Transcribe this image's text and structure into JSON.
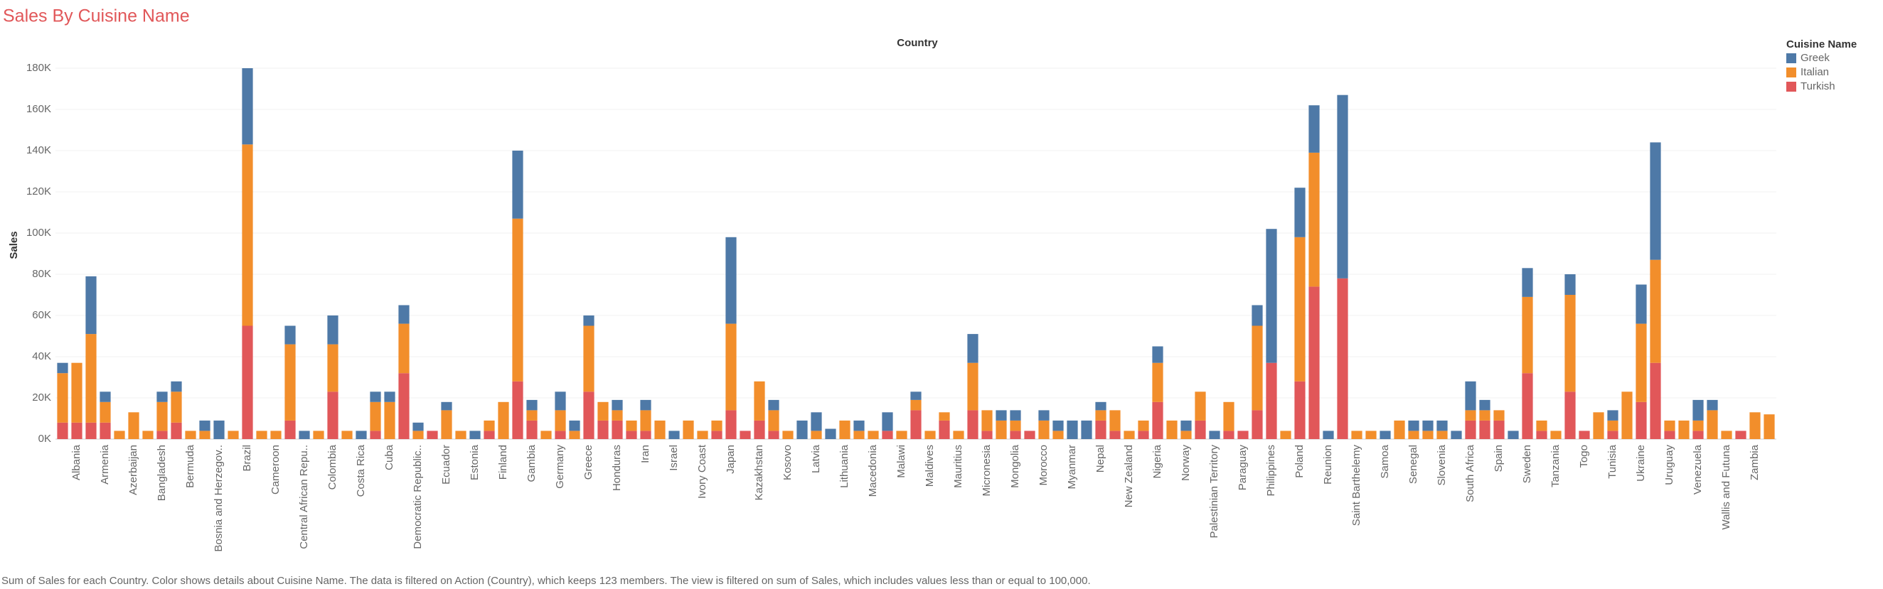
{
  "chart_data": {
    "type": "stacked_bar",
    "title": "Sales By Cuisine Name",
    "x_axis_title": "Country",
    "y_axis_title": "Sales",
    "legend_title": "Cuisine Name",
    "footnote": "Sum of Sales for each Country.  Color shows details about Cuisine Name. The data is filtered on Action (Country), which keeps 123 members. The view is filtered on sum of Sales, which includes values less than or equal to 100,000.",
    "categories": [
      null,
      "Albania",
      null,
      "Armenia",
      null,
      "Azerbaijan",
      null,
      "Bangladesh",
      null,
      "Bermuda",
      null,
      "Bosnia and Herzegov..",
      null,
      "Brazil",
      null,
      "Cameroon",
      null,
      "Central African Repu..",
      null,
      "Colombia",
      null,
      "Costa Rica",
      null,
      "Cuba",
      null,
      "Democratic Republic..",
      null,
      "Ecuador",
      null,
      "Estonia",
      null,
      "Finland",
      null,
      "Gambia",
      null,
      "Germany",
      null,
      "Greece",
      null,
      "Honduras",
      null,
      "Iran",
      null,
      "Israel",
      null,
      "Ivory Coast",
      null,
      "Japan",
      null,
      "Kazakhstan",
      null,
      "Kosovo",
      null,
      "Latvia",
      null,
      "Lithuania",
      null,
      "Macedonia",
      null,
      "Malawi",
      null,
      "Maldives",
      null,
      "Mauritius",
      null,
      "Micronesia",
      null,
      "Mongolia",
      null,
      "Morocco",
      null,
      "Myanmar",
      null,
      "Nepal",
      null,
      "New Zealand",
      null,
      "Nigeria",
      null,
      "Norway",
      null,
      "Palestinian Territory",
      null,
      "Paraguay",
      null,
      "Philippines",
      null,
      "Poland",
      null,
      "Reunion",
      null,
      "Saint Barthelemy",
      null,
      "Samoa",
      null,
      "Senegal",
      null,
      "Slovenia",
      null,
      "South Africa",
      null,
      "Spain",
      null,
      "Sweden",
      null,
      "Tanzania",
      null,
      "Togo",
      null,
      "Tunisia",
      null,
      "Ukraine",
      null,
      "Uruguay",
      null,
      "Venezuela",
      null,
      "Wallis and Futuna",
      null,
      "Zambia",
      null
    ],
    "series": [
      {
        "name": "Greek",
        "color": "#4e79a7",
        "values": [
          5000,
          0,
          28000,
          5000,
          0,
          0,
          0,
          5000,
          5000,
          0,
          5000,
          9000,
          0,
          37000,
          0,
          0,
          9000,
          4000,
          0,
          14000,
          0,
          4000,
          5000,
          5000,
          9000,
          4000,
          0,
          4000,
          0,
          4000,
          0,
          0,
          33000,
          5000,
          0,
          9000,
          5000,
          5000,
          0,
          5000,
          0,
          5000,
          0,
          4000,
          0,
          0,
          0,
          42000,
          0,
          0,
          5000,
          0,
          9000,
          9000,
          5000,
          0,
          5000,
          0,
          9000,
          0,
          4000,
          0,
          0,
          0,
          14000,
          0,
          5000,
          5000,
          0,
          5000,
          5000,
          9000,
          9000,
          4000,
          0,
          0,
          0,
          8000,
          0,
          5000,
          0,
          4000,
          0,
          0,
          10000,
          65000,
          0,
          24000,
          23000,
          4000,
          89000,
          0,
          0,
          4000,
          0,
          5000,
          5000,
          5000,
          4000,
          14000,
          5000,
          0,
          4000,
          14000,
          0,
          0,
          10000,
          0,
          0,
          5000,
          0,
          19000,
          57000,
          0,
          0,
          10000,
          5000,
          0,
          0,
          0,
          0
        ]
      },
      {
        "name": "Italian",
        "color": "#f28e2b",
        "values": [
          24000,
          29000,
          43000,
          10000,
          4000,
          13000,
          4000,
          14000,
          15000,
          4000,
          4000,
          0,
          4000,
          88000,
          4000,
          4000,
          37000,
          0,
          4000,
          23000,
          4000,
          0,
          14000,
          18000,
          24000,
          4000,
          0,
          14000,
          4000,
          0,
          5000,
          18000,
          79000,
          5000,
          4000,
          10000,
          4000,
          32000,
          9000,
          5000,
          5000,
          10000,
          9000,
          0,
          9000,
          4000,
          5000,
          42000,
          0,
          19000,
          10000,
          4000,
          0,
          4000,
          0,
          9000,
          4000,
          4000,
          0,
          4000,
          5000,
          4000,
          4000,
          4000,
          23000,
          10000,
          9000,
          5000,
          0,
          9000,
          4000,
          0,
          0,
          5000,
          10000,
          4000,
          5000,
          19000,
          9000,
          4000,
          14000,
          0,
          14000,
          0,
          41000,
          0,
          4000,
          70000,
          65000,
          0,
          0,
          4000,
          4000,
          0,
          9000,
          4000,
          4000,
          4000,
          0,
          5000,
          5000,
          5000,
          0,
          37000,
          5000,
          4000,
          47000,
          0,
          13000,
          5000,
          23000,
          38000,
          50000,
          5000,
          9000,
          5000,
          14000,
          4000,
          0,
          13000,
          12000
        ]
      },
      {
        "name": "Turkish",
        "color": "#e15759",
        "values": [
          8000,
          8000,
          8000,
          8000,
          0,
          0,
          0,
          4000,
          8000,
          0,
          0,
          0,
          0,
          55000,
          0,
          0,
          9000,
          0,
          0,
          23000,
          0,
          0,
          4000,
          0,
          32000,
          0,
          4000,
          0,
          0,
          0,
          4000,
          0,
          28000,
          9000,
          0,
          4000,
          0,
          23000,
          9000,
          9000,
          4000,
          4000,
          0,
          0,
          0,
          0,
          4000,
          14000,
          4000,
          9000,
          4000,
          0,
          0,
          0,
          0,
          0,
          0,
          0,
          4000,
          0,
          14000,
          0,
          9000,
          0,
          14000,
          4000,
          0,
          4000,
          4000,
          0,
          0,
          0,
          0,
          9000,
          4000,
          0,
          4000,
          18000,
          0,
          0,
          9000,
          0,
          4000,
          4000,
          14000,
          37000,
          0,
          28000,
          74000,
          0,
          78000,
          0,
          0,
          0,
          0,
          0,
          0,
          0,
          0,
          9000,
          9000,
          9000,
          0,
          32000,
          4000,
          0,
          23000,
          4000,
          0,
          4000,
          0,
          18000,
          37000,
          4000,
          0,
          4000,
          0,
          0,
          4000,
          0,
          0
        ]
      }
    ],
    "ylim": [
      0,
      180000
    ],
    "yticks": [
      {
        "value": 0,
        "label": "0K"
      },
      {
        "value": 20000,
        "label": "20K"
      },
      {
        "value": 40000,
        "label": "40K"
      },
      {
        "value": 60000,
        "label": "60K"
      },
      {
        "value": 80000,
        "label": "80K"
      },
      {
        "value": 100000,
        "label": "100K"
      },
      {
        "value": 120000,
        "label": "120K"
      },
      {
        "value": 140000,
        "label": "140K"
      },
      {
        "value": 160000,
        "label": "160K"
      },
      {
        "value": 180000,
        "label": "180K"
      }
    ],
    "grid": true,
    "legend": "right"
  }
}
